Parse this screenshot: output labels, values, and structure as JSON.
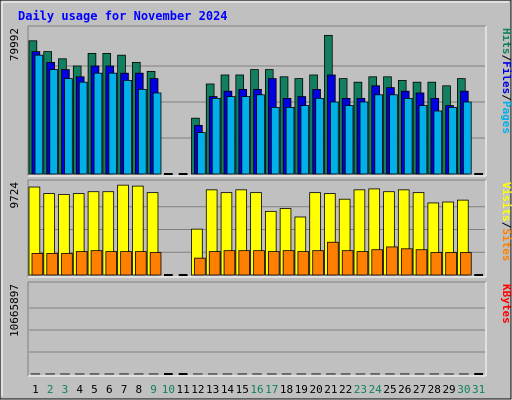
{
  "chart_data": {
    "type": "bar",
    "title": "Daily usage for November 2024",
    "categories": [
      "1",
      "2",
      "3",
      "4",
      "5",
      "6",
      "7",
      "8",
      "9",
      "10",
      "11",
      "12",
      "13",
      "14",
      "15",
      "16",
      "17",
      "18",
      "19",
      "20",
      "21",
      "22",
      "23",
      "24",
      "25",
      "26",
      "27",
      "28",
      "29",
      "30",
      "31"
    ],
    "weekend_days": [
      "2",
      "3",
      "9",
      "10",
      "16",
      "17",
      "23",
      "24",
      "30",
      "31"
    ],
    "top_panel": {
      "ymax_label": "79992",
      "ymax": 79992,
      "right_labels": [
        "Pages",
        "/",
        "Files",
        "/",
        "Hits"
      ],
      "series": [
        {
          "name": "Hits",
          "color": "#128060",
          "values": [
            74000,
            68000,
            64000,
            60000,
            67000,
            67000,
            66000,
            62000,
            57000,
            0,
            0,
            31000,
            50000,
            55000,
            55000,
            58000,
            58000,
            54000,
            53000,
            55000,
            77000,
            53000,
            51000,
            54000,
            54000,
            52000,
            51000,
            51000,
            49000,
            53000,
            0
          ]
        },
        {
          "name": "Files",
          "color": "#0000e0",
          "values": [
            68000,
            62000,
            58000,
            54000,
            60000,
            60000,
            56000,
            56000,
            53000,
            0,
            0,
            27000,
            43000,
            46000,
            47000,
            47000,
            53000,
            42000,
            43000,
            47000,
            55000,
            42000,
            42000,
            49000,
            48000,
            46000,
            45000,
            42000,
            38000,
            46000,
            0
          ]
        },
        {
          "name": "Pages",
          "color": "#00b0e8",
          "values": [
            66000,
            58000,
            53000,
            51000,
            56000,
            56000,
            52000,
            47000,
            45000,
            0,
            0,
            23000,
            42000,
            43000,
            43000,
            44000,
            37000,
            37000,
            38000,
            42000,
            40000,
            38000,
            40000,
            44000,
            44000,
            42000,
            38000,
            35000,
            37000,
            40000,
            0
          ]
        }
      ]
    },
    "middle_panel": {
      "ymax_label": "9724",
      "ymax": 9724,
      "right_labels": [
        "Sites",
        "/",
        "Visits"
      ],
      "series": [
        {
          "name": "Visits",
          "color": "#ffff00",
          "values": [
            9400,
            8700,
            8600,
            8700,
            8900,
            8900,
            9600,
            9500,
            8800,
            0,
            0,
            4900,
            9100,
            8800,
            9100,
            8800,
            6800,
            7100,
            6200,
            8800,
            8700,
            8100,
            9100,
            9200,
            8900,
            9100,
            8800,
            7700,
            7800,
            8000,
            0
          ]
        },
        {
          "name": "Sites",
          "color": "#ff8000",
          "values": [
            2300,
            2300,
            2300,
            2500,
            2600,
            2500,
            2500,
            2500,
            2400,
            0,
            0,
            1800,
            2500,
            2600,
            2600,
            2600,
            2500,
            2600,
            2500,
            2600,
            3500,
            2600,
            2500,
            2700,
            3000,
            2800,
            2700,
            2400,
            2400,
            2400,
            0
          ]
        }
      ]
    },
    "bottom_panel": {
      "ymax_label": "10665897",
      "ymax": 10665897,
      "right_labels": [
        "KBytes"
      ],
      "series": [
        {
          "name": "KBytes",
          "color": "#ff0000",
          "values": [
            8300,
            6500,
            6000,
            5700,
            7200,
            7100,
            8200,
            9100,
            8400,
            0,
            0,
            3700,
            7200,
            7700,
            7700,
            7700,
            7500,
            6900,
            7100,
            9300,
            10500,
            7000,
            2500,
            8400,
            8400,
            8400,
            7500,
            6000,
            4600,
            7500,
            0
          ]
        }
      ]
    },
    "colors": {
      "background": "#c0c0c0",
      "title": "#0000ff",
      "hits": "#128060",
      "files": "#0000e0",
      "pages": "#00b0e8",
      "visits": "#ffff00",
      "sites": "#ff8000",
      "kbytes": "#ff0000",
      "weekday_label": "#000000",
      "weekend_label": "#128060"
    }
  }
}
